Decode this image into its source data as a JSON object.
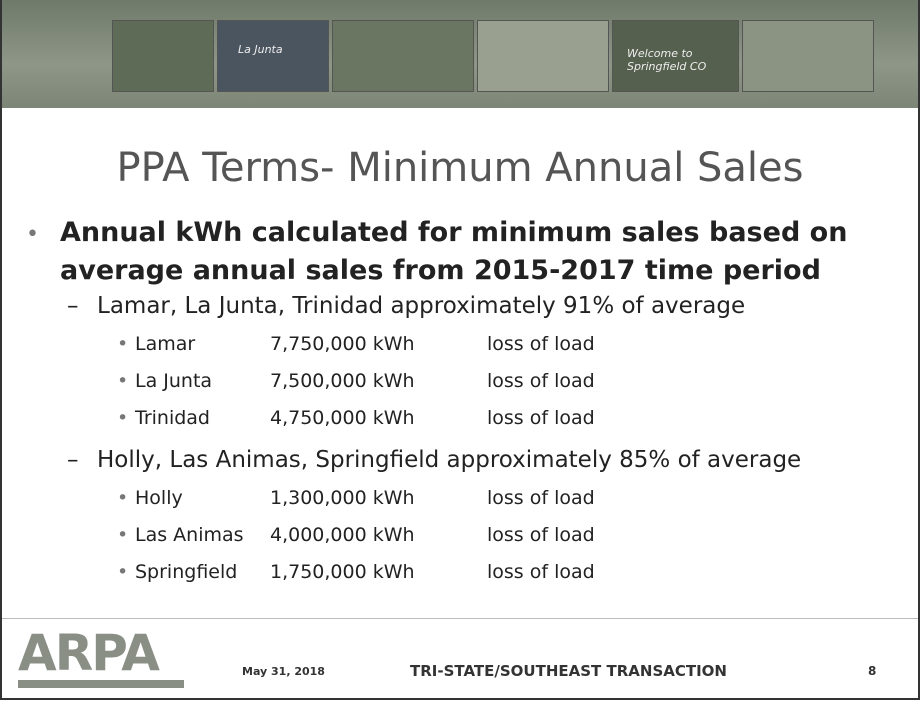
{
  "banner": {
    "captions": [
      "La Junta",
      "Welcome to Springfield CO"
    ]
  },
  "title": "PPA Terms- Minimum Annual Sales",
  "bullet": "Annual kWh calculated for minimum sales based on average annual sales from 2015-2017 time period",
  "groups": [
    {
      "heading": "Lamar, La Junta, Trinidad approximately 91% of average",
      "items": [
        {
          "name": "Lamar",
          "amount": "7,750,000 kWh",
          "note": "loss of load"
        },
        {
          "name": "La Junta",
          "amount": "7,500,000 kWh",
          "note": "loss of load"
        },
        {
          "name": "Trinidad",
          "amount": "4,750,000 kWh",
          "note": "loss of load"
        }
      ]
    },
    {
      "heading": "Holly, Las Animas, Springfield approximately 85% of average",
      "items": [
        {
          "name": "Holly",
          "amount": "1,300,000 kWh",
          "note": "loss of load"
        },
        {
          "name": "Las Animas",
          "amount": "4,000,000 kWh",
          "note": "loss of load"
        },
        {
          "name": "Springfield",
          "amount": "1,750,000 kWh",
          "note": "loss of load"
        }
      ]
    }
  ],
  "footer": {
    "logo": "ARPA",
    "date": "May 31, 2018",
    "transaction": "TRI-STATE/SOUTHEAST TRANSACTION",
    "page": "8"
  }
}
